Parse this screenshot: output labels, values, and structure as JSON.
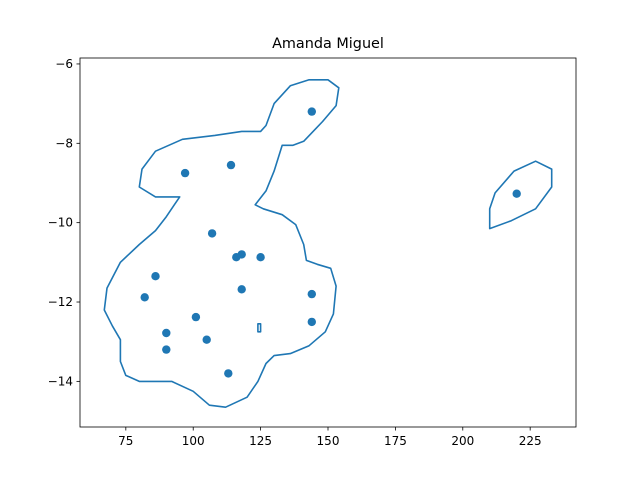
{
  "chart_data": {
    "type": "scatter",
    "title": "Amanda Miguel",
    "xlabel": "",
    "ylabel": "",
    "xlim": [
      58,
      242
    ],
    "ylim": [
      -15.15,
      -5.85
    ],
    "xticks": [
      75,
      100,
      125,
      150,
      175,
      200,
      225
    ],
    "yticks": [
      -14,
      -12,
      -10,
      -8,
      -6
    ],
    "grid": false,
    "color": "#1f77b4",
    "points": [
      {
        "x": 144,
        "y": -7.2
      },
      {
        "x": 114,
        "y": -8.55
      },
      {
        "x": 97,
        "y": -8.75
      },
      {
        "x": 220,
        "y": -9.27
      },
      {
        "x": 107,
        "y": -10.27
      },
      {
        "x": 118,
        "y": -10.8
      },
      {
        "x": 116,
        "y": -10.87
      },
      {
        "x": 125,
        "y": -10.87
      },
      {
        "x": 86,
        "y": -11.35
      },
      {
        "x": 118,
        "y": -11.68
      },
      {
        "x": 144,
        "y": -11.8
      },
      {
        "x": 82,
        "y": -11.88
      },
      {
        "x": 101,
        "y": -12.38
      },
      {
        "x": 144,
        "y": -12.5
      },
      {
        "x": 90,
        "y": -12.78
      },
      {
        "x": 105,
        "y": -12.95
      },
      {
        "x": 90,
        "y": -13.2
      },
      {
        "x": 113,
        "y": -13.8
      }
    ],
    "contours": [
      [
        [
          96,
          -7.9
        ],
        [
          108,
          -7.8
        ],
        [
          118,
          -7.7
        ],
        [
          125,
          -7.7
        ],
        [
          127,
          -7.55
        ],
        [
          130,
          -7.0
        ],
        [
          136,
          -6.55
        ],
        [
          143,
          -6.4
        ],
        [
          150,
          -6.4
        ],
        [
          154,
          -6.6
        ],
        [
          153,
          -7.05
        ],
        [
          148,
          -7.45
        ],
        [
          141,
          -7.95
        ],
        [
          137,
          -8.05
        ],
        [
          133,
          -8.05
        ],
        [
          130,
          -8.7
        ],
        [
          127,
          -9.2
        ],
        [
          123,
          -9.55
        ],
        [
          126,
          -9.65
        ],
        [
          133,
          -9.8
        ],
        [
          138,
          -10.05
        ],
        [
          141,
          -10.55
        ],
        [
          142,
          -10.95
        ],
        [
          146,
          -11.05
        ],
        [
          151,
          -11.15
        ],
        [
          153,
          -11.6
        ],
        [
          152,
          -12.3
        ],
        [
          149,
          -12.75
        ],
        [
          143,
          -13.1
        ],
        [
          136,
          -13.3
        ],
        [
          130,
          -13.35
        ],
        [
          127,
          -13.55
        ],
        [
          124,
          -14.0
        ],
        [
          120,
          -14.4
        ],
        [
          112,
          -14.65
        ],
        [
          106,
          -14.6
        ],
        [
          100,
          -14.25
        ],
        [
          92,
          -14.0
        ],
        [
          80,
          -14.0
        ],
        [
          75,
          -13.85
        ],
        [
          73,
          -13.5
        ],
        [
          73,
          -12.95
        ],
        [
          70,
          -12.6
        ],
        [
          67,
          -12.2
        ],
        [
          68,
          -11.65
        ],
        [
          73,
          -11.0
        ],
        [
          80,
          -10.55
        ],
        [
          86,
          -10.2
        ],
        [
          90,
          -9.85
        ],
        [
          93,
          -9.55
        ],
        [
          95,
          -9.35
        ],
        [
          92,
          -9.35
        ],
        [
          86,
          -9.35
        ],
        [
          80,
          -9.1
        ],
        [
          81,
          -8.65
        ],
        [
          86,
          -8.2
        ],
        [
          96,
          -7.9
        ]
      ],
      [
        [
          210,
          -10.15
        ],
        [
          218,
          -9.95
        ],
        [
          227,
          -9.65
        ],
        [
          233,
          -9.1
        ],
        [
          233,
          -8.65
        ],
        [
          227,
          -8.45
        ],
        [
          219,
          -8.7
        ],
        [
          212,
          -9.25
        ],
        [
          210,
          -9.65
        ],
        [
          210,
          -10.15
        ]
      ],
      [
        [
          124,
          -12.55
        ],
        [
          125,
          -12.55
        ],
        [
          125,
          -12.75
        ],
        [
          124,
          -12.75
        ],
        [
          124,
          -12.55
        ]
      ]
    ]
  }
}
